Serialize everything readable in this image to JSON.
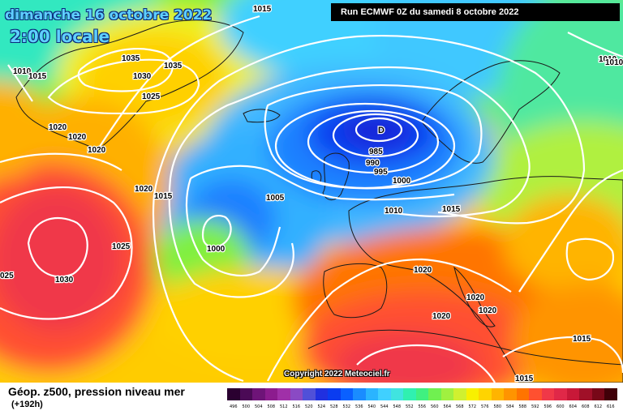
{
  "header": {
    "date": "dimanche 16 octobre 2022",
    "time": "2:00 locale",
    "run": "Run ECMWF 0Z du samedi 8 octobre 2022"
  },
  "copyright": "Copyright 2022 Meteociel.fr",
  "legend": {
    "title": "Géop. z500, pression niveau mer",
    "subtitle": "(+192h)",
    "scale": [
      {
        "v": "496",
        "c": "#2a0030"
      },
      {
        "v": "500",
        "c": "#4b0a56"
      },
      {
        "v": "504",
        "c": "#6e1478"
      },
      {
        "v": "508",
        "c": "#8c1c8e"
      },
      {
        "v": "512",
        "c": "#a030a8"
      },
      {
        "v": "516",
        "c": "#8a4ac4"
      },
      {
        "v": "520",
        "c": "#5050d8"
      },
      {
        "v": "524",
        "c": "#2030e0"
      },
      {
        "v": "528",
        "c": "#0a3cf0"
      },
      {
        "v": "532",
        "c": "#0a60ff"
      },
      {
        "v": "536",
        "c": "#1a8cff"
      },
      {
        "v": "540",
        "c": "#2ab4ff"
      },
      {
        "v": "544",
        "c": "#40d0ff"
      },
      {
        "v": "548",
        "c": "#40e4e0"
      },
      {
        "v": "552",
        "c": "#30f0b0"
      },
      {
        "v": "556",
        "c": "#40f080"
      },
      {
        "v": "560",
        "c": "#70f050"
      },
      {
        "v": "564",
        "c": "#a0f040"
      },
      {
        "v": "568",
        "c": "#d0f030"
      },
      {
        "v": "572",
        "c": "#f8f000"
      },
      {
        "v": "576",
        "c": "#ffd400"
      },
      {
        "v": "580",
        "c": "#ffb400"
      },
      {
        "v": "584",
        "c": "#ff9400"
      },
      {
        "v": "588",
        "c": "#ff7400"
      },
      {
        "v": "592",
        "c": "#ff5030"
      },
      {
        "v": "596",
        "c": "#f03848"
      },
      {
        "v": "600",
        "c": "#e02848"
      },
      {
        "v": "604",
        "c": "#c81838"
      },
      {
        "v": "608",
        "c": "#a01028"
      },
      {
        "v": "612",
        "c": "#780818"
      },
      {
        "v": "616",
        "c": "#400008"
      }
    ]
  },
  "isobar_labels": [
    "1015",
    "1010",
    "1015",
    "1035",
    "1030",
    "1035",
    "1025",
    "1020",
    "1020",
    "1020",
    "1020",
    "1015",
    "1025",
    "1030",
    "025",
    "1005",
    "1000",
    "985",
    "990",
    "995",
    "1000",
    "1010",
    "1015",
    "1020",
    "1020",
    "1020",
    "1020",
    "1015",
    "1015",
    "1010",
    "1010"
  ],
  "low_marker": "D",
  "colors": {
    "isobar": "#ffffff",
    "coast": "#1a1a1a"
  }
}
